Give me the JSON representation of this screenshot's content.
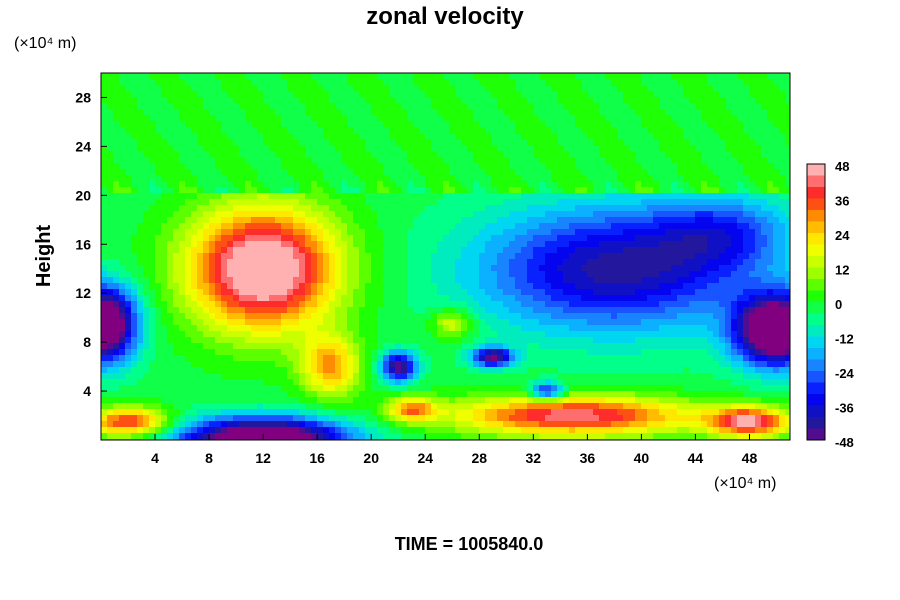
{
  "chart_data": {
    "type": "heatmap",
    "title": "zonal velocity",
    "xlabel": "",
    "ylabel": "Height",
    "x_unit_label": "(×10⁴ m)",
    "y_unit_label": "(×10⁴ m)",
    "xlim": [
      0,
      51
    ],
    "ylim": [
      0,
      30
    ],
    "x_ticks": [
      "4",
      "8",
      "12",
      "16",
      "20",
      "24",
      "28",
      "32",
      "36",
      "40",
      "44",
      "48"
    ],
    "y_ticks": [
      "4",
      "8",
      "12",
      "16",
      "20",
      "24",
      "28"
    ],
    "colorbar": {
      "min": -48,
      "max": 48,
      "ticks": [
        "48",
        "36",
        "24",
        "12",
        "0",
        "-12",
        "-24",
        "-36",
        "-48"
      ],
      "levels": 24
    },
    "footer": "TIME = 1005840.0",
    "field_features": [
      {
        "kind": "background",
        "region": "upper layer above height 20",
        "value": 0
      },
      {
        "kind": "jet",
        "sign": "positive",
        "center": [
          12,
          14
        ],
        "peak": 48
      },
      {
        "kind": "jet",
        "sign": "negative",
        "center": [
          38,
          13
        ],
        "peak": -36
      },
      {
        "kind": "jet",
        "sign": "negative",
        "center": [
          12,
          0.5
        ],
        "peak": -48
      },
      {
        "kind": "jet",
        "sign": "negative",
        "center": [
          49,
          9
        ],
        "peak": -48
      },
      {
        "kind": "jet",
        "sign": "negative",
        "center": [
          1,
          9.5
        ],
        "peak": -48
      },
      {
        "kind": "jet",
        "sign": "positive",
        "center": [
          35,
          2
        ],
        "peak": 48
      }
    ]
  },
  "colors": {
    "colormap": [
      "#800080",
      "#1a1aa0",
      "#0000ff",
      "#2070ff",
      "#00d0ff",
      "#00ff90",
      "#20ff00",
      "#b0ff00",
      "#ffff00",
      "#ffa000",
      "#ff2020",
      "#ffb0b0"
    ],
    "background": "#ffffff",
    "axis": "#000000"
  }
}
